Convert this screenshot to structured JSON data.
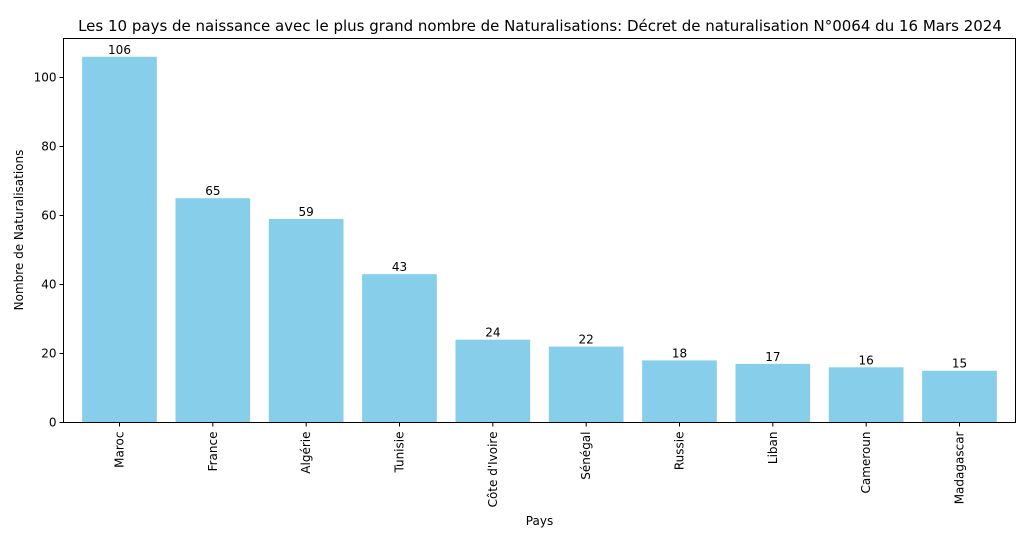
{
  "chart_data": {
    "type": "bar",
    "title": "Les 10 pays de naissance avec le plus grand nombre de Naturalisations: Décret de naturalisation N°0064 du 16 Mars 2024",
    "xlabel": "Pays",
    "ylabel": "Nombre de Naturalisations",
    "categories": [
      "Maroc",
      "France",
      "Algérie",
      "Tunisie",
      "Côte d'Ivoire",
      "Sénégal",
      "Russie",
      "Liban",
      "Cameroun",
      "Madagascar"
    ],
    "values": [
      106,
      65,
      59,
      43,
      24,
      22,
      18,
      17,
      16,
      15
    ],
    "ylim": [
      0,
      111.3
    ],
    "yticks": [
      0,
      20,
      40,
      60,
      80,
      100
    ],
    "bar_color": "#87CEEB",
    "grid": false,
    "legend": "none"
  }
}
